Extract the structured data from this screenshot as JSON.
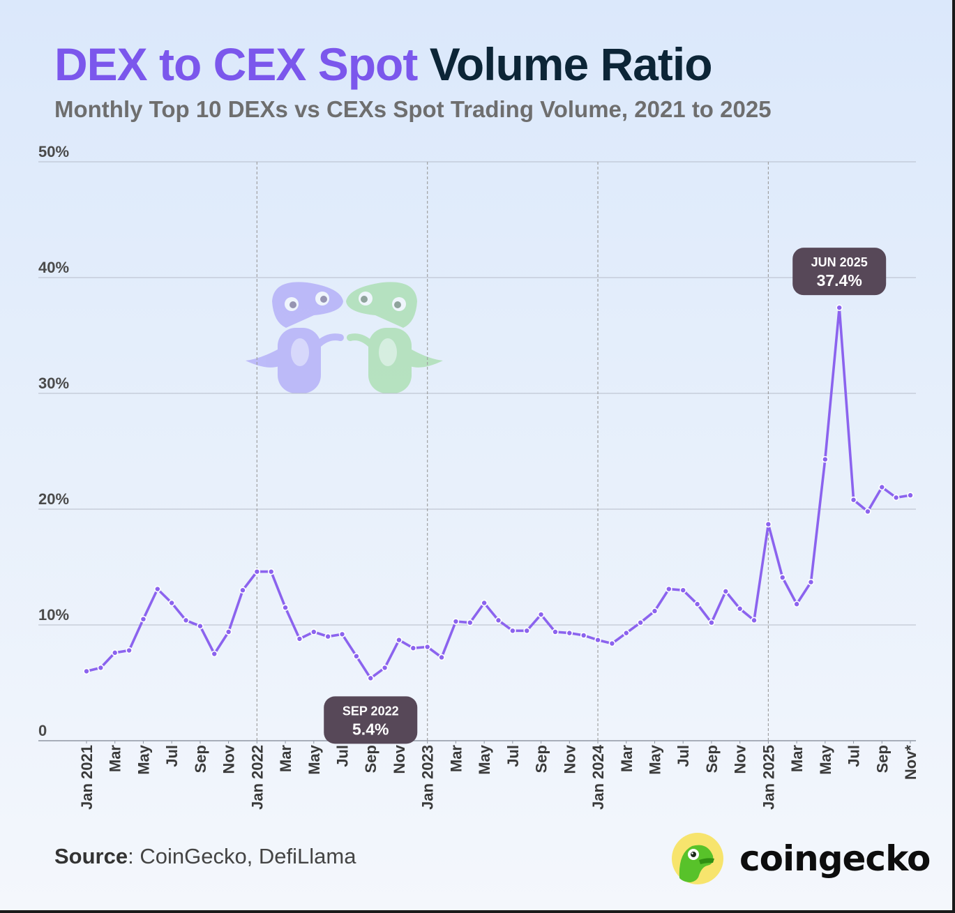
{
  "title": {
    "accent": "DEX to CEX Spot",
    "rest": "Volume Ratio"
  },
  "subtitle": "Monthly Top 10 DEXs vs CEXs Spot Trading Volume, 2021 to 2025",
  "footer": {
    "source_label": "Source",
    "source_text": ": CoinGecko, DefiLlama"
  },
  "brand": {
    "name": "coingecko"
  },
  "colors": {
    "line": "#8b63ee",
    "label_bg": "#574858",
    "grid": "#b6bcc8",
    "axis_text": "#4a4a4a"
  },
  "chart_data": {
    "type": "line",
    "title": "DEX to CEX Spot Volume Ratio",
    "subtitle": "Monthly Top 10 DEXs vs CEXs Spot Trading Volume, 2021 to 2025",
    "xlabel": "",
    "ylabel": "",
    "ylim": [
      0,
      50
    ],
    "y_ticks": [
      {
        "value": 0,
        "label": "0"
      },
      {
        "value": 10,
        "label": "10%"
      },
      {
        "value": 20,
        "label": "20%"
      },
      {
        "value": 30,
        "label": "30%"
      },
      {
        "value": 40,
        "label": "40%"
      },
      {
        "value": 50,
        "label": "50%"
      }
    ],
    "x_tick_labels": [
      "Jan 2021",
      "Mar",
      "May",
      "Jul",
      "Sep",
      "Nov",
      "Jan 2022",
      "Mar",
      "May",
      "Jul",
      "Sep",
      "Nov",
      "Jan 2023",
      "Mar",
      "May",
      "Jul",
      "Sep",
      "Nov",
      "Jan 2024",
      "Mar",
      "May",
      "Jul",
      "Sep",
      "Nov",
      "Jan 2025",
      "Mar",
      "May",
      "Jul",
      "Sep",
      "Nov*"
    ],
    "year_separators": [
      "Jan 2022",
      "Jan 2023",
      "Jan 2024",
      "Jan 2025"
    ],
    "series": [
      {
        "name": "DEX to CEX spot volume ratio (%)",
        "categories": [
          "Jan 2021",
          "Feb 2021",
          "Mar 2021",
          "Apr 2021",
          "May 2021",
          "Jun 2021",
          "Jul 2021",
          "Aug 2021",
          "Sep 2021",
          "Oct 2021",
          "Nov 2021",
          "Dec 2021",
          "Jan 2022",
          "Feb 2022",
          "Mar 2022",
          "Apr 2022",
          "May 2022",
          "Jun 2022",
          "Jul 2022",
          "Aug 2022",
          "Sep 2022",
          "Oct 2022",
          "Nov 2022",
          "Dec 2022",
          "Jan 2023",
          "Feb 2023",
          "Mar 2023",
          "Apr 2023",
          "May 2023",
          "Jun 2023",
          "Jul 2023",
          "Aug 2023",
          "Sep 2023",
          "Oct 2023",
          "Nov 2023",
          "Dec 2023",
          "Jan 2024",
          "Feb 2024",
          "Mar 2024",
          "Apr 2024",
          "May 2024",
          "Jun 2024",
          "Jul 2024",
          "Aug 2024",
          "Sep 2024",
          "Oct 2024",
          "Nov 2024",
          "Dec 2024",
          "Jan 2025",
          "Feb 2025",
          "Mar 2025",
          "Apr 2025",
          "May 2025",
          "Jun 2025",
          "Jul 2025",
          "Aug 2025",
          "Sep 2025",
          "Oct 2025",
          "Nov 2025"
        ],
        "values": [
          6.0,
          6.3,
          7.6,
          7.8,
          10.5,
          13.1,
          11.9,
          10.4,
          9.9,
          7.5,
          9.4,
          13.0,
          14.6,
          14.6,
          11.5,
          8.8,
          9.4,
          9.0,
          9.2,
          7.3,
          5.4,
          6.3,
          8.7,
          8.0,
          8.1,
          7.2,
          10.3,
          10.2,
          11.9,
          10.4,
          9.5,
          9.5,
          10.9,
          9.4,
          9.3,
          9.1,
          8.7,
          8.4,
          9.3,
          10.2,
          11.2,
          13.1,
          13.0,
          11.8,
          10.2,
          12.9,
          11.4,
          10.4,
          18.7,
          14.1,
          11.8,
          13.7,
          24.3,
          37.4,
          20.8,
          19.8,
          21.9,
          21.0,
          21.2
        ]
      }
    ],
    "annotations": [
      {
        "category": "Jun 2025",
        "title": "JUN 2025",
        "value": "37.4%",
        "placement": "above"
      },
      {
        "category": "Sep 2022",
        "title": "SEP 2022",
        "value": "5.4%",
        "placement": "below"
      }
    ]
  }
}
